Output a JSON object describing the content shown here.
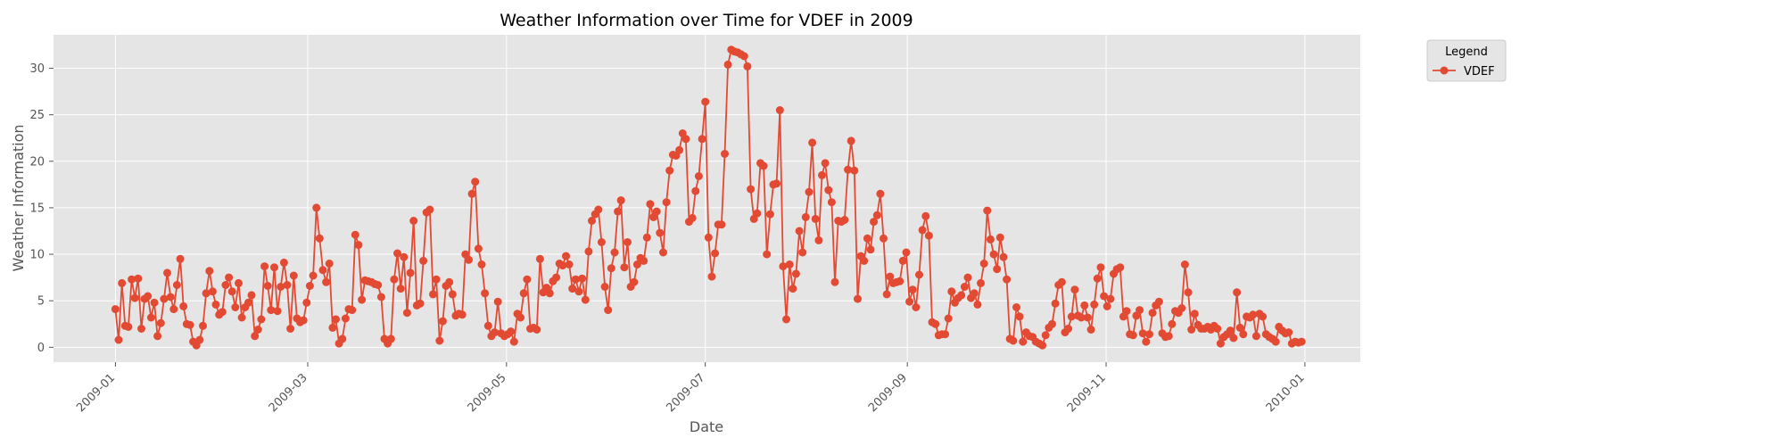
{
  "chart_data": {
    "type": "line",
    "title": "Weather Information over Time for VDEF in 2009",
    "xlabel": "Date",
    "ylabel": "Weather Information",
    "x_ticks": [
      "2009-01",
      "2009-03",
      "2009-05",
      "2009-07",
      "2009-09",
      "2009-11",
      "2010-01"
    ],
    "y_ticks": [
      "0",
      "5",
      "10",
      "15",
      "20",
      "25",
      "30"
    ],
    "ylim": [
      -1.6,
      33.6
    ],
    "xlim": [
      "2008-12-13",
      "2010-01-18"
    ],
    "grid": true,
    "legend": {
      "title": "Legend",
      "position": "outside-top-right"
    },
    "series": [
      {
        "name": "VDEF",
        "color": "#E24A33",
        "x_start": "2009-01-01",
        "x_end": "2009-12-31",
        "values": [
          4.1,
          0.8,
          6.9,
          2.3,
          2.2,
          7.3,
          5.3,
          7.4,
          2.0,
          5.2,
          5.5,
          3.2,
          4.8,
          1.2,
          2.6,
          5.2,
          8.0,
          5.4,
          4.1,
          6.7,
          9.5,
          4.4,
          2.5,
          2.4,
          0.6,
          0.2,
          0.8,
          2.3,
          5.8,
          8.2,
          6.0,
          4.6,
          3.5,
          3.8,
          6.7,
          7.5,
          6.0,
          4.3,
          6.9,
          3.2,
          4.3,
          4.8,
          5.6,
          1.2,
          1.9,
          3.0,
          8.7,
          6.6,
          4.0,
          8.6,
          3.9,
          6.5,
          9.1,
          6.7,
          2.0,
          7.7,
          3.1,
          2.7,
          2.9,
          4.8,
          6.6,
          7.7,
          15.0,
          11.7,
          8.3,
          7.0,
          9.0,
          2.1,
          3.0,
          0.4,
          0.9,
          3.1,
          4.1,
          4.0,
          12.1,
          11.0,
          5.1,
          7.2,
          7.1,
          7.0,
          6.8,
          6.7,
          5.4,
          0.9,
          0.4,
          0.9,
          7.3,
          10.1,
          6.3,
          9.7,
          3.7,
          8.0,
          13.6,
          4.5,
          4.7,
          9.3,
          14.5,
          14.8,
          5.7,
          7.3,
          0.7,
          2.8,
          6.6,
          7.0,
          5.7,
          3.4,
          3.6,
          3.5,
          10.0,
          9.4,
          16.5,
          17.8,
          10.6,
          8.9,
          5.8,
          2.3,
          1.2,
          1.6,
          4.9,
          1.5,
          1.2,
          1.4,
          1.7,
          0.6,
          3.6,
          3.2,
          5.8,
          7.3,
          2.0,
          2.1,
          1.9,
          9.5,
          5.9,
          6.4,
          5.8,
          7.1,
          7.5,
          9.0,
          8.8,
          9.8,
          8.9,
          6.3,
          7.3,
          6.0,
          7.4,
          5.1,
          10.3,
          13.6,
          14.3,
          14.8,
          11.3,
          6.5,
          4.0,
          8.5,
          10.2,
          14.6,
          15.8,
          8.6,
          11.3,
          6.5,
          7.0,
          8.9,
          9.6,
          9.3,
          11.8,
          15.4,
          14.0,
          14.6,
          12.3,
          10.2,
          15.6,
          19.0,
          20.7,
          20.6,
          21.2,
          23.0,
          22.4,
          13.5,
          13.9,
          16.8,
          18.4,
          22.4,
          26.4,
          11.8,
          7.6,
          10.1,
          13.2,
          13.2,
          20.8,
          30.4,
          32.0,
          31.8,
          31.7,
          31.5,
          31.3,
          30.2,
          17.0,
          13.8,
          14.4,
          19.8,
          19.5,
          10.0,
          14.3,
          17.5,
          17.6,
          25.5,
          8.7,
          3.0,
          8.9,
          6.3,
          7.9,
          12.5,
          10.2,
          14.0,
          16.7,
          22.0,
          13.8,
          11.5,
          18.5,
          19.8,
          16.9,
          15.6,
          7.0,
          13.6,
          13.5,
          13.7,
          19.1,
          22.2,
          19.0,
          5.2,
          9.8,
          9.3,
          11.7,
          10.5,
          13.5,
          14.2,
          16.5,
          11.7,
          5.7,
          7.6,
          6.9,
          7.0,
          7.1,
          9.3,
          10.2,
          4.9,
          6.2,
          4.3,
          7.8,
          12.6,
          14.1,
          12.0,
          2.7,
          2.5,
          1.3,
          1.4,
          1.4,
          3.1,
          6.0,
          4.8,
          5.3,
          5.6,
          6.5,
          7.5,
          5.3,
          5.8,
          4.6,
          6.9,
          9.0,
          14.7,
          11.6,
          10.0,
          8.4,
          11.8,
          9.7,
          7.3,
          0.9,
          0.7,
          4.3,
          3.3,
          0.6,
          1.6,
          1.2,
          1.1,
          0.6,
          0.4,
          0.2,
          1.3,
          2.1,
          2.5,
          4.7,
          6.7,
          7.0,
          1.6,
          2.0,
          3.3,
          6.2,
          3.4,
          3.2,
          4.5,
          3.2,
          1.9,
          4.6,
          7.4,
          8.6,
          5.5,
          4.4,
          5.2,
          7.9,
          8.4,
          8.6,
          3.3,
          3.9,
          1.4,
          1.3,
          3.4,
          4.0,
          1.5,
          0.6,
          1.4,
          3.7,
          4.5,
          4.9,
          1.5,
          1.1,
          1.2,
          2.5,
          3.9,
          3.7,
          4.2,
          8.9,
          5.9,
          1.9,
          3.6,
          2.4,
          2.0,
          2.0,
          2.2,
          1.9,
          2.3,
          2.0,
          0.4,
          1.1,
          1.4,
          1.8,
          1.0,
          5.9,
          2.1,
          1.4,
          3.3,
          3.2,
          3.5,
          1.2,
          3.6,
          3.3,
          1.4,
          1.1,
          0.9,
          0.6,
          2.2,
          1.8,
          1.5,
          1.6,
          0.4,
          0.6,
          0.5,
          0.6
        ]
      }
    ]
  }
}
